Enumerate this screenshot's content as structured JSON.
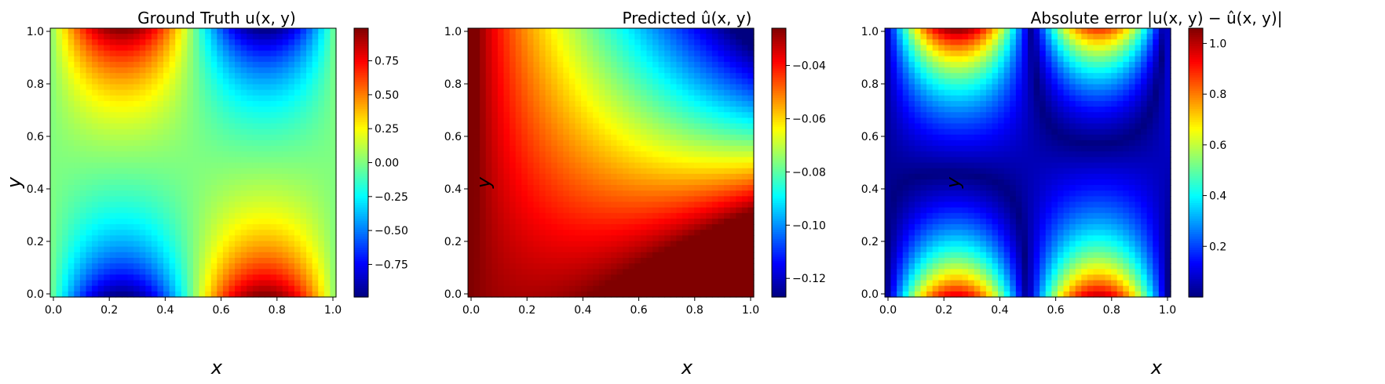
{
  "chart_data": [
    {
      "type": "heatmap",
      "title": "Ground Truth u(x, y)",
      "xlabel": "x",
      "ylabel": "y",
      "xlim": [
        0.0,
        1.0
      ],
      "ylim": [
        0.0,
        1.0
      ],
      "xticks": [
        "0.0",
        "0.2",
        "0.4",
        "0.6",
        "0.8",
        "1.0"
      ],
      "yticks": [
        "0.0",
        "0.2",
        "0.4",
        "0.6",
        "0.8",
        "1.0"
      ],
      "colorbar": {
        "min": -0.99,
        "max": 0.99,
        "ticks": [
          "0.75",
          "0.50",
          "0.25",
          "0.00",
          "−0.25",
          "−0.50",
          "−0.75"
        ],
        "tick_values": [
          0.75,
          0.5,
          0.25,
          0.0,
          -0.25,
          -0.5,
          -0.75
        ]
      },
      "field": "u(x,y) ≈ y^4·sin(2πx) − (1−y)^4·sin(2πx)",
      "grid": false,
      "colormap": "jet"
    },
    {
      "type": "heatmap",
      "title": "Predicted û(x, y)",
      "xlabel": "x",
      "ylabel": "y",
      "xlim": [
        0.0,
        1.0
      ],
      "ylim": [
        0.0,
        1.0
      ],
      "xticks": [
        "0.0",
        "0.2",
        "0.4",
        "0.6",
        "0.8",
        "1.0"
      ],
      "yticks": [
        "0.0",
        "0.2",
        "0.4",
        "0.6",
        "0.8",
        "1.0"
      ],
      "colorbar": {
        "min": -0.127,
        "max": -0.026,
        "ticks": [
          "−0.04",
          "−0.06",
          "−0.08",
          "−0.10",
          "−0.12"
        ],
        "tick_values": [
          -0.04,
          -0.06,
          -0.08,
          -0.1,
          -0.12
        ]
      },
      "field": "smooth gradient: ≈ −0.026 at (0,0.8) and (1,0), ≈ −0.127 at (1,1)",
      "grid": false,
      "colormap": "jet"
    },
    {
      "type": "heatmap",
      "title": "Absolute error |u(x, y) − û(x, y)|",
      "xlabel": "x",
      "ylabel": "y",
      "xlim": [
        0.0,
        1.0
      ],
      "ylim": [
        0.0,
        1.0
      ],
      "xticks": [
        "0.0",
        "0.2",
        "0.4",
        "0.6",
        "0.8",
        "1.0"
      ],
      "yticks": [
        "0.0",
        "0.2",
        "0.4",
        "0.6",
        "0.8",
        "1.0"
      ],
      "colorbar": {
        "min": 0.0,
        "max": 1.06,
        "ticks": [
          "1.0",
          "0.8",
          "0.6",
          "0.4",
          "0.2"
        ],
        "tick_values": [
          1.0,
          0.8,
          0.6,
          0.4,
          0.2
        ]
      },
      "field": "|u − û|, peaks ≈ 1.0 at (0.25,1), (0.75,0) and (0.75,1), (0.25,0)",
      "grid": false,
      "colormap": "jet"
    }
  ]
}
